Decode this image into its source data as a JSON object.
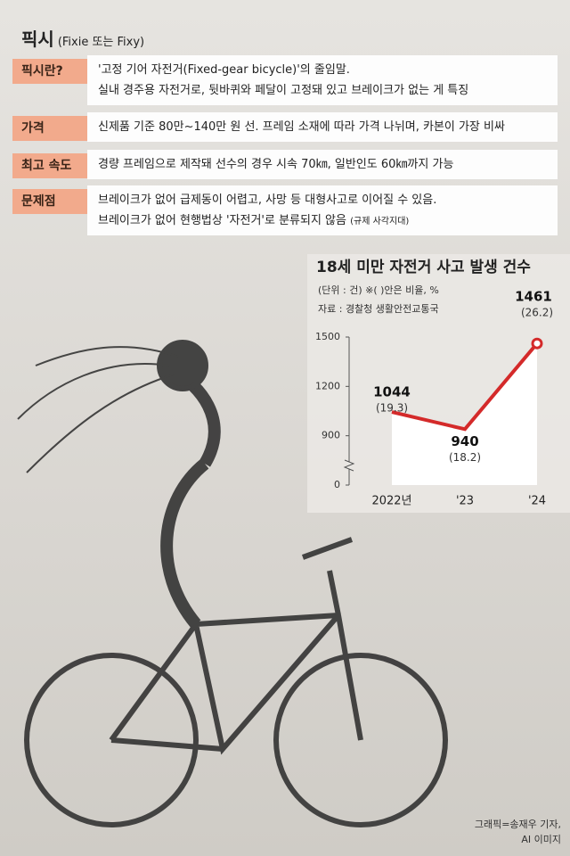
{
  "header": {
    "title": "픽시",
    "subtitle": "(Fixie 또는 Fixy)"
  },
  "table": {
    "rows": [
      {
        "label": "픽시란?",
        "lines": [
          "'고정 기어 자전거(Fixed-gear bicycle)'의 줄임말.",
          "실내 경주용 자전거로, 뒷바퀴와 페달이 고정돼 있고 브레이크가 없는 게 특징"
        ]
      },
      {
        "label": "가격",
        "lines": [
          "신제품 기준 80만~140만 원 선. 프레임 소재에 따라 가격 나뉘며, 카본이 가장 비싸"
        ]
      },
      {
        "label": "최고 속도",
        "lines": [
          "경량 프레임으로 제작돼 선수의 경우 시속 70㎞, 일반인도 60㎞까지 가능"
        ]
      },
      {
        "label": "문제점",
        "lines": [
          "브레이크가 없어 급제동이 어렵고, 사망 등 대형사고로 이어질 수 있음.",
          "브레이크가 없어 현행법상 '자전거'로 분류되지 않음"
        ],
        "note": "(규제 사각지대)"
      }
    ]
  },
  "chart_data": {
    "type": "line",
    "title": "18세 미만 자전거 사고 발생 건수",
    "unit": "(단위 : 건)   ※( )안은 비율, %",
    "source": "자료 : 경찰청 생활안전교통국",
    "categories": [
      "2022년",
      "'23",
      "'24"
    ],
    "values": [
      1044,
      940,
      1461
    ],
    "ratios": [
      19.3,
      18.2,
      26.2
    ],
    "ratio_labels": [
      "(19.3)",
      "(18.2)",
      "(26.2)"
    ],
    "color": "#d42a2a",
    "ylim": [
      600,
      1500
    ],
    "yticks": [
      0,
      900,
      1200,
      1500
    ],
    "axis_break": true
  },
  "credit": [
    "그래픽=송재우 기자,",
    "AI 이미지"
  ]
}
